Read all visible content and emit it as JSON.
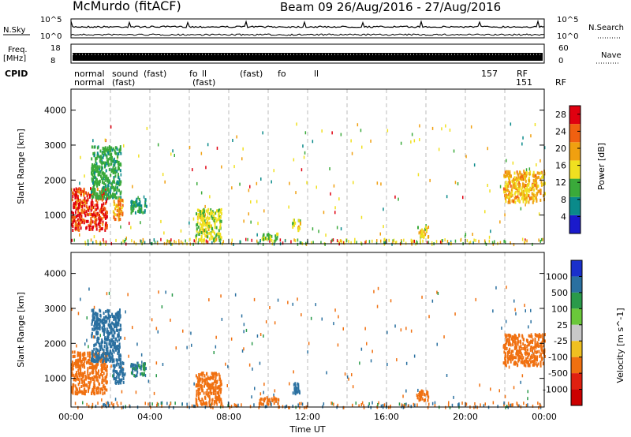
{
  "header": {
    "station": "McMurdo (fitACF)",
    "beam_info": "Beam 09 26/Aug/2016 - 27/Aug/2016"
  },
  "top_panels": {
    "nsky_label": "N.Sky",
    "nsky_ticks": [
      "10^5",
      "10^0"
    ],
    "nsearch_label": "N.Search",
    "nsearch_ticks": [
      "10^5",
      "10^0"
    ],
    "freq_label_1": "Freq.",
    "freq_label_2": "[MHz]",
    "freq_ticks": [
      "18",
      "8"
    ],
    "nave_label": "Nave",
    "nave_ticks": [
      "60",
      "0"
    ],
    "cpid_label": "CPID",
    "cpid_row1": [
      "normal",
      "sound",
      "(fast)",
      "fo",
      "ll",
      "(fast)",
      "fo",
      "ll",
      "157",
      "RF"
    ],
    "cpid_row2": [
      "normal",
      "(fast)",
      "(fast)",
      "151",
      "RF"
    ]
  },
  "chart_data": [
    {
      "type": "heatmap",
      "title": "",
      "xlabel": "Time UT",
      "ylabel": "Slant Range [km]",
      "x_ticks": [
        "00:00",
        "04:00",
        "08:00",
        "12:00",
        "16:00",
        "20:00",
        "00:00"
      ],
      "x_range_hours": [
        0,
        24
      ],
      "y_ticks": [
        1000,
        2000,
        3000,
        4000
      ],
      "ylim": [
        180,
        4600
      ],
      "colorbar_label": "Power [dB]",
      "colorbar_ticks": [
        4,
        8,
        12,
        16,
        20,
        24,
        28
      ],
      "colorbar_range": [
        0,
        30
      ],
      "colorbar_colors": [
        "#1a1acc",
        "#0a8a8a",
        "#3aaa3a",
        "#f0e020",
        "#f0a010",
        "#f06010",
        "#e00010"
      ],
      "echo_regions": [
        {
          "t0": 0.0,
          "t1": 1.8,
          "r0": 600,
          "r1": 1800,
          "value": 26
        },
        {
          "t0": 1.0,
          "t1": 2.5,
          "r0": 1500,
          "r1": 3000,
          "value": 10
        },
        {
          "t0": 2.1,
          "t1": 2.6,
          "r0": 900,
          "r1": 1500,
          "value": 20
        },
        {
          "t0": 3.0,
          "t1": 3.8,
          "r0": 1100,
          "r1": 1500,
          "value": 8
        },
        {
          "t0": 6.3,
          "t1": 7.6,
          "r0": 300,
          "r1": 1200,
          "value": 14
        },
        {
          "t0": 9.5,
          "t1": 10.5,
          "r0": 300,
          "r1": 500,
          "value": 12
        },
        {
          "t0": 11.2,
          "t1": 11.6,
          "r0": 600,
          "r1": 900,
          "value": 14
        },
        {
          "t0": 17.5,
          "t1": 18.1,
          "r0": 400,
          "r1": 700,
          "value": 16
        },
        {
          "t0": 21.9,
          "t1": 24.0,
          "r0": 1400,
          "r1": 2300,
          "value": 18
        }
      ]
    },
    {
      "type": "heatmap",
      "title": "",
      "xlabel": "Time UT",
      "ylabel": "Slant Range [km]",
      "x_ticks": [
        "00:00",
        "04:00",
        "08:00",
        "12:00",
        "16:00",
        "20:00",
        "00:00"
      ],
      "x_range_hours": [
        0,
        24
      ],
      "y_ticks": [
        1000,
        2000,
        3000,
        4000
      ],
      "ylim": [
        180,
        4600
      ],
      "colorbar_label": "Velocity [m s^-1]",
      "colorbar_ticks": [
        1000,
        500,
        100,
        25,
        -25,
        -100,
        -500,
        -1000
      ],
      "colorbar_colors": [
        "#1a30cc",
        "#2a70a0",
        "#2a9a4a",
        "#6ac83a",
        "#c8c8c8",
        "#f0c020",
        "#f07010",
        "#e02010",
        "#cc0000"
      ],
      "echo_regions": [
        {
          "t0": 0.0,
          "t1": 1.8,
          "r0": 600,
          "r1": 1800,
          "value": -150
        },
        {
          "t0": 1.0,
          "t1": 2.5,
          "r0": 1500,
          "r1": 3000,
          "value": 200
        },
        {
          "t0": 2.1,
          "t1": 2.7,
          "r0": 900,
          "r1": 1500,
          "value": 150
        },
        {
          "t0": 3.0,
          "t1": 3.8,
          "r0": 1100,
          "r1": 1500,
          "value": 100
        },
        {
          "t0": 6.3,
          "t1": 7.6,
          "r0": 300,
          "r1": 1200,
          "value": -300
        },
        {
          "t0": 9.5,
          "t1": 10.5,
          "r0": 300,
          "r1": 500,
          "value": -200
        },
        {
          "t0": 11.2,
          "t1": 11.6,
          "r0": 600,
          "r1": 900,
          "value": 200
        },
        {
          "t0": 17.5,
          "t1": 18.1,
          "r0": 400,
          "r1": 700,
          "value": -300
        },
        {
          "t0": 21.9,
          "t1": 24.0,
          "r0": 1400,
          "r1": 2300,
          "value": -200
        }
      ]
    }
  ]
}
